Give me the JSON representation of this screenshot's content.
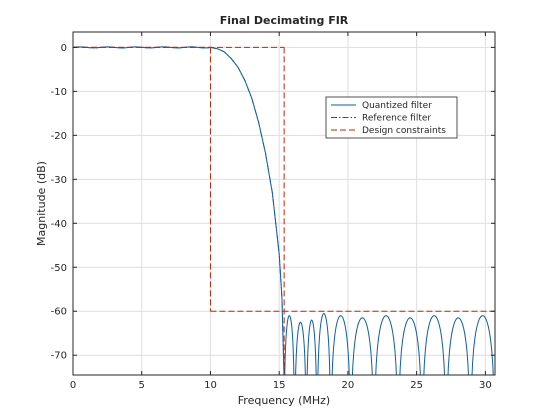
{
  "chart_data": {
    "type": "line",
    "title": "Final Decimating FIR",
    "xlabel": "Frequency (MHz)",
    "ylabel": "Magnitude (dB)",
    "xlim": [
      0,
      30.7
    ],
    "ylim": [
      -74.5,
      3.5
    ],
    "xticks": [
      0,
      5,
      10,
      15,
      20,
      25,
      30
    ],
    "yticks": [
      0,
      -10,
      -20,
      -30,
      -40,
      -50,
      -60,
      -70
    ],
    "xtick_labels": [
      "0",
      "5",
      "10",
      "15",
      "20",
      "25",
      "30"
    ],
    "ytick_labels": [
      "0",
      "-10",
      "-20",
      "-30",
      "-40",
      "-50",
      "-60",
      "-70"
    ],
    "grid": true,
    "legend_position": "upper-right",
    "series": [
      {
        "name": "Quantized filter",
        "style": "solid",
        "color": "#0b5fa5",
        "passband_end_mhz": 10.0,
        "rolloff": {
          "x": [
            10.0,
            10.5,
            11.0,
            11.5,
            12.0,
            12.5,
            13.0,
            13.5,
            14.0,
            14.5,
            15.0,
            15.2,
            15.35
          ],
          "y": [
            0.0,
            -0.3,
            -1.0,
            -2.5,
            -4.5,
            -7.5,
            -11.5,
            -17.0,
            -24.0,
            -33.0,
            -47.0,
            -57.0,
            -74.5
          ]
        },
        "stopband_lobe_peaks": {
          "x": [
            15.7,
            16.55,
            17.4,
            18.1,
            19.4,
            21.0,
            22.8,
            24.5,
            26.3,
            28.0,
            29.8
          ],
          "y": [
            -61.0,
            -62.5,
            -62.0,
            -60.5,
            -61.0,
            -61.5,
            -61.0,
            -61.5,
            -61.0,
            -61.5,
            -61.0
          ]
        }
      },
      {
        "name": "Reference filter",
        "style": "dash-dot",
        "color": "#0b5fa5"
      },
      {
        "name": "Design constraints",
        "style": "dashed",
        "color": "#cc2200",
        "segments": [
          {
            "x": [
              0,
              10
            ],
            "y": [
              0,
              0
            ]
          },
          {
            "x": [
              10,
              10
            ],
            "y": [
              0,
              -60
            ]
          },
          {
            "x": [
              10,
              30.7
            ],
            "y": [
              -60,
              -60
            ]
          },
          {
            "x": [
              0,
              15.36
            ],
            "y": [
              0,
              0
            ]
          },
          {
            "x": [
              15.36,
              15.36
            ],
            "y": [
              0,
              -74.5
            ]
          }
        ]
      }
    ]
  }
}
